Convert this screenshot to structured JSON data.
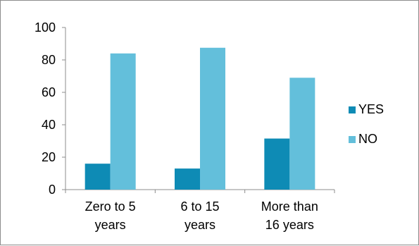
{
  "chart_data": {
    "type": "bar",
    "categories": [
      [
        "Zero to 5",
        "years"
      ],
      [
        "6 to 15",
        "years"
      ],
      [
        "More than",
        "16 years"
      ]
    ],
    "series": [
      {
        "name": "YES",
        "color": "#0e8bb5",
        "values": [
          16,
          13,
          31.5
        ]
      },
      {
        "name": "NO",
        "color": "#63bfdb",
        "values": [
          84,
          87.5,
          69
        ]
      }
    ],
    "ylim": [
      0,
      100
    ],
    "yticks": [
      "0",
      "20",
      "40",
      "60",
      "80",
      "100"
    ],
    "grid": false,
    "legend": "right",
    "title": "",
    "xlabel": "",
    "ylabel": ""
  }
}
